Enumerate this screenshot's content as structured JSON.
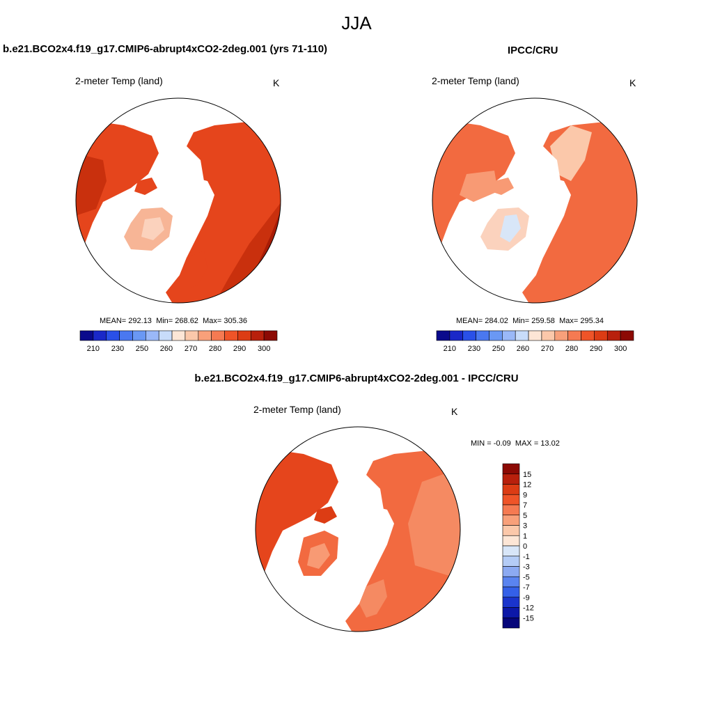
{
  "figure": {
    "title": "JJA"
  },
  "panels": {
    "model": {
      "header": "b.e21.BCO2x4.f19_g17.CMIP6-abrupt4xCO2-2deg.001 (yrs 71-110)",
      "variable": "2-meter Temp (land)",
      "units": "K",
      "mean_label": "MEAN=",
      "mean": "292.13",
      "min_label": "Min=",
      "min": "268.62",
      "max_label": "Max=",
      "max": "305.36"
    },
    "obs": {
      "header": "IPCC/CRU",
      "variable": "2-meter Temp (land)",
      "units": "K",
      "mean_label": "MEAN=",
      "mean": "284.02",
      "min_label": "Min=",
      "min": "259.58",
      "max_label": "Max=",
      "max": "295.34"
    },
    "diff": {
      "header": "b.e21.BCO2x4.f19_g17.CMIP6-abrupt4xCO2-2deg.001 - IPCC/CRU",
      "variable": "2-meter Temp (land)",
      "units": "K",
      "min_label": "MIN =",
      "min": "-0.09",
      "max_label": "MAX =",
      "max": "13.02"
    }
  },
  "colorbars": {
    "absolute": {
      "ticks": [
        "210",
        "230",
        "250",
        "260",
        "270",
        "280",
        "290",
        "300"
      ],
      "colors": [
        "#0a0a8c",
        "#1a28c8",
        "#2a50e8",
        "#4a78f0",
        "#6a98f4",
        "#9ab8f8",
        "#c8dcfa",
        "#fde6d6",
        "#fbc8aa",
        "#f8a07a",
        "#f57a52",
        "#ef5428",
        "#dc3c14",
        "#b8200c",
        "#8c0a04"
      ]
    },
    "difference": {
      "ticks": [
        "15",
        "12",
        "9",
        "7",
        "5",
        "3",
        "1",
        "0",
        "-1",
        "-3",
        "-5",
        "-7",
        "-9",
        "-12",
        "-15"
      ],
      "colors": [
        "#8c0a04",
        "#b8200c",
        "#dc3c14",
        "#ef5428",
        "#f57a52",
        "#f8a07a",
        "#fbc8aa",
        "#fde6d6",
        "#d8e6f8",
        "#b4ccf6",
        "#8caaf2",
        "#5a84f0",
        "#3460e8",
        "#1a34cc",
        "#0c18a8",
        "#06067a"
      ]
    }
  }
}
